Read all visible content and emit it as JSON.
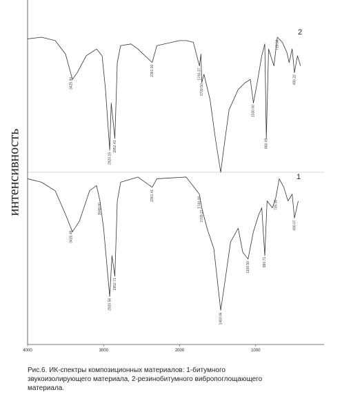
{
  "ylabel": "интенсивность",
  "caption": [
    "Рис.6. ИК-спектры композиционных материалов: 1-битумного",
    "звукоизолирующего материала, 2-резинобитумного вибропоглощающего",
    "материала."
  ],
  "chart_data": [
    {
      "type": "line",
      "xlim": [
        4000,
        100
      ],
      "ylim": [
        0,
        100
      ],
      "x": [
        4000,
        3819,
        3637,
        3501,
        3410,
        3347,
        3229,
        3093,
        3020,
        2975,
        2920,
        2900,
        2852,
        2820,
        2776,
        2640,
        2549,
        2361,
        2300,
        2000,
        1914,
        1820,
        1740,
        1720,
        1709,
        1680,
        1600,
        1530,
        1460,
        1420,
        1350,
        1230,
        1140,
        1070,
        1030,
        980,
        920,
        880,
        860,
        830,
        760,
        715,
        650,
        590,
        560,
        520,
        490,
        450,
        410
      ],
      "series": [
        {
          "name": "2",
          "color": "#333333",
          "values": [
            79,
            80,
            78,
            70,
            55,
            59,
            69,
            73,
            69,
            49,
            13,
            41,
            20,
            65,
            75,
            76,
            73,
            65,
            75,
            78,
            78,
            77,
            63,
            70,
            53,
            58,
            43,
            20,
            0,
            14,
            37,
            49,
            53,
            55,
            41,
            53,
            69,
            76,
            20,
            73,
            63,
            80,
            77,
            71,
            65,
            73,
            59,
            69,
            63
          ]
        }
      ],
      "peaks": {
        "x": [
          3425.9,
          2920.15,
          2852.43,
          2361.0,
          1740.37,
          1709.5,
          1030.66,
          860.49,
          715.58,
          490.22
        ],
        "value_labels": [
          "3425.90",
          "2920.15",
          "2852.43",
          "2361.00",
          "1740.37",
          "1709.50",
          "1030.66",
          "860.49",
          "715.58",
          "490.22"
        ]
      }
    },
    {
      "type": "line",
      "xlim": [
        4000,
        100
      ],
      "ylim": [
        0,
        100
      ],
      "xticks": [
        4000,
        3000,
        2000,
        1000
      ],
      "x": [
        4000,
        3819,
        3637,
        3500,
        3410,
        3320,
        3184,
        3093,
        3048,
        3000,
        2920,
        2890,
        2852,
        2820,
        2776,
        2549,
        2361,
        2300,
        1914,
        1740,
        1709,
        1640,
        1550,
        1460,
        1420,
        1330,
        1230,
        1170,
        1100,
        1030,
        960,
        920,
        880,
        850,
        780,
        735,
        690,
        630,
        575,
        520,
        490,
        440
      ],
      "series": [
        {
          "name": "1",
          "color": "#333333",
          "values": [
            97,
            95,
            90,
            76,
            66,
            72,
            90,
            93,
            84,
            68,
            28,
            52,
            40,
            84,
            95,
            98,
            92,
            97,
            98,
            88,
            80,
            68,
            56,
            20,
            32,
            60,
            68,
            54,
            50,
            66,
            76,
            80,
            52,
            84,
            80,
            86,
            97,
            92,
            84,
            88,
            74,
            84
          ]
        }
      ],
      "peaks": {
        "x": [
          3426.48,
          3049.0,
          2920.58,
          2852.71,
          2361.41,
          1740.0,
          1709.27,
          1460.06,
          1100.5,
          880.71,
          735.0,
          490.07
        ],
        "value_labels": [
          "3426.48",
          "3049.00",
          "2920.58",
          "2852.71",
          "2361.41",
          "1740.00",
          "1709.27",
          "1460.06",
          "1100.50",
          "880.71",
          "735.00",
          "490.07"
        ]
      }
    }
  ]
}
